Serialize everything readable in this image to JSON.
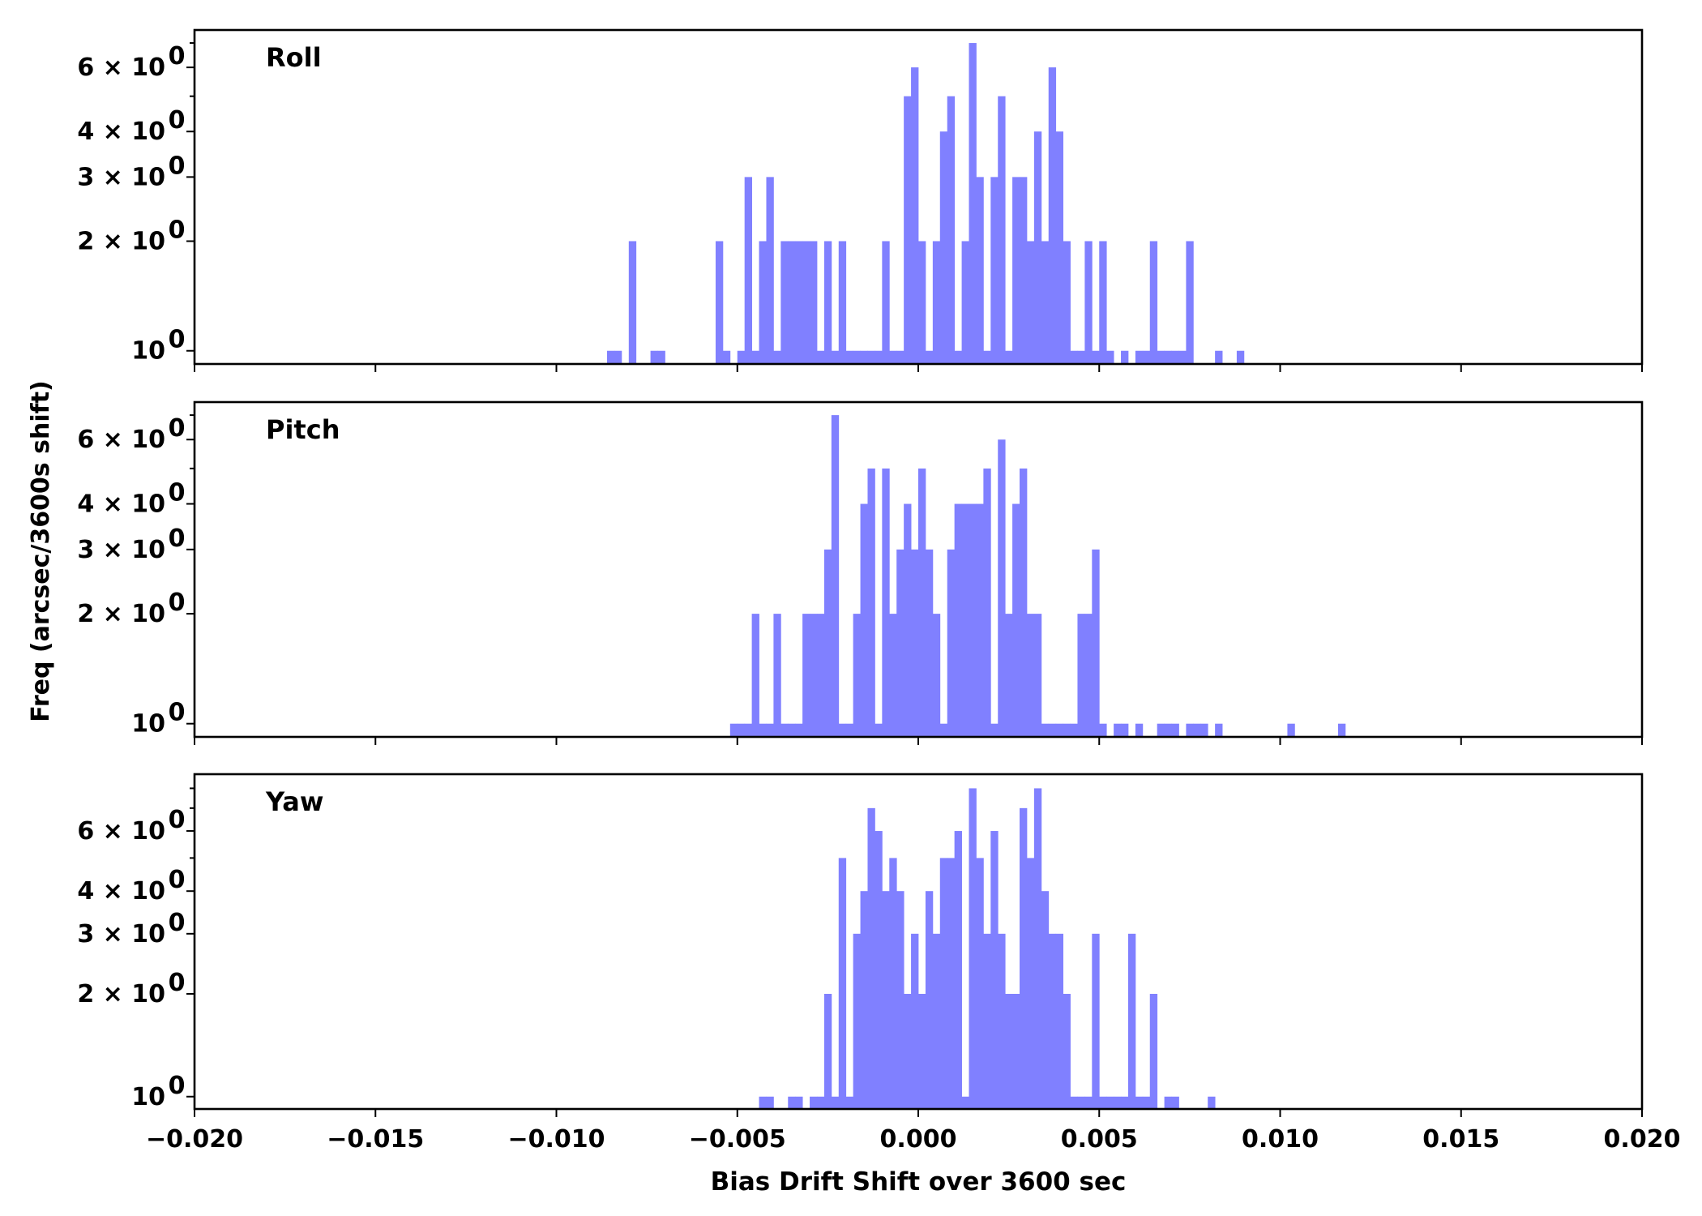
{
  "colors": {
    "bar": "#8080ff",
    "axes": "#000000"
  },
  "chart_data": {
    "type": "histogram",
    "xlabel": "Bias Drift Shift over 3600 sec",
    "ylabel": "Freq (arcsec/3600s shift)",
    "xlim": [
      -0.02,
      0.02
    ],
    "xticks": [
      -0.02,
      -0.015,
      -0.01,
      -0.005,
      0.0,
      0.005,
      0.01,
      0.015,
      0.02
    ],
    "xtick_labels": [
      "−0.020",
      "−0.015",
      "−0.010",
      "−0.005",
      "0.000",
      "0.005",
      "0.010",
      "0.015",
      "0.020"
    ],
    "yscale": "log",
    "bin_width": 0.0002,
    "ytick_labels": {
      "1": [
        "10",
        "0"
      ],
      "2": [
        "2 × 10",
        "0"
      ],
      "3": [
        "3 × 10",
        "0"
      ],
      "4": [
        "4 × 10",
        "0"
      ],
      "6": [
        "6 × 10",
        "0"
      ]
    },
    "panels": [
      {
        "title": "Roll",
        "ylim": [
          0.92,
          7.6
        ],
        "yticks": [
          1,
          2,
          3,
          4,
          6
        ],
        "bins": [
          [
            -0.0086,
            1
          ],
          [
            -0.0084,
            1
          ],
          [
            -0.008,
            2
          ],
          [
            -0.0074,
            1
          ],
          [
            -0.0072,
            1
          ],
          [
            -0.0056,
            2
          ],
          [
            -0.0054,
            1
          ],
          [
            -0.005,
            1
          ],
          [
            -0.0048,
            3
          ],
          [
            -0.0046,
            1
          ],
          [
            -0.0044,
            2
          ],
          [
            -0.0042,
            3
          ],
          [
            -0.004,
            1
          ],
          [
            -0.0038,
            2
          ],
          [
            -0.0036,
            2
          ],
          [
            -0.0034,
            2
          ],
          [
            -0.0032,
            2
          ],
          [
            -0.003,
            2
          ],
          [
            -0.0028,
            1
          ],
          [
            -0.0026,
            2
          ],
          [
            -0.0024,
            1
          ],
          [
            -0.0022,
            2
          ],
          [
            -0.002,
            1
          ],
          [
            -0.0018,
            1
          ],
          [
            -0.0016,
            1
          ],
          [
            -0.0014,
            1
          ],
          [
            -0.0012,
            1
          ],
          [
            -0.001,
            2
          ],
          [
            -0.0008,
            1
          ],
          [
            -0.0006,
            1
          ],
          [
            -0.0004,
            5
          ],
          [
            -0.0002,
            6
          ],
          [
            0.0,
            2
          ],
          [
            0.0002,
            1
          ],
          [
            0.0004,
            2
          ],
          [
            0.0006,
            4
          ],
          [
            0.0008,
            5
          ],
          [
            0.001,
            1
          ],
          [
            0.0012,
            2
          ],
          [
            0.0014,
            7
          ],
          [
            0.0016,
            3
          ],
          [
            0.0018,
            1
          ],
          [
            0.002,
            3
          ],
          [
            0.0022,
            5
          ],
          [
            0.0024,
            1
          ],
          [
            0.0026,
            3
          ],
          [
            0.0028,
            3
          ],
          [
            0.003,
            2
          ],
          [
            0.0032,
            4
          ],
          [
            0.0034,
            2
          ],
          [
            0.0036,
            6
          ],
          [
            0.0038,
            4
          ],
          [
            0.004,
            2
          ],
          [
            0.0042,
            1
          ],
          [
            0.0044,
            1
          ],
          [
            0.0046,
            2
          ],
          [
            0.0048,
            1
          ],
          [
            0.005,
            2
          ],
          [
            0.0052,
            1
          ],
          [
            0.0056,
            1
          ],
          [
            0.006,
            1
          ],
          [
            0.0062,
            1
          ],
          [
            0.0064,
            2
          ],
          [
            0.0066,
            1
          ],
          [
            0.0068,
            1
          ],
          [
            0.007,
            1
          ],
          [
            0.0072,
            1
          ],
          [
            0.0074,
            2
          ],
          [
            0.0082,
            1
          ],
          [
            0.0088,
            1
          ]
        ]
      },
      {
        "title": "Pitch",
        "ylim": [
          0.92,
          7.6
        ],
        "yticks": [
          1,
          2,
          3,
          4,
          6
        ],
        "bins": [
          [
            -0.0052,
            1
          ],
          [
            -0.005,
            1
          ],
          [
            -0.0048,
            1
          ],
          [
            -0.0046,
            2
          ],
          [
            -0.0044,
            1
          ],
          [
            -0.0042,
            1
          ],
          [
            -0.004,
            2
          ],
          [
            -0.0038,
            1
          ],
          [
            -0.0036,
            1
          ],
          [
            -0.0034,
            1
          ],
          [
            -0.0032,
            2
          ],
          [
            -0.003,
            2
          ],
          [
            -0.0028,
            2
          ],
          [
            -0.0026,
            3
          ],
          [
            -0.0024,
            7
          ],
          [
            -0.0022,
            1
          ],
          [
            -0.002,
            1
          ],
          [
            -0.0018,
            2
          ],
          [
            -0.0016,
            4
          ],
          [
            -0.0014,
            5
          ],
          [
            -0.0012,
            1
          ],
          [
            -0.001,
            5
          ],
          [
            -0.0008,
            2
          ],
          [
            -0.0006,
            3
          ],
          [
            -0.0004,
            4
          ],
          [
            -0.0002,
            3
          ],
          [
            0.0,
            5
          ],
          [
            0.0002,
            3
          ],
          [
            0.0004,
            2
          ],
          [
            0.0006,
            1
          ],
          [
            0.0008,
            3
          ],
          [
            0.001,
            4
          ],
          [
            0.0012,
            4
          ],
          [
            0.0014,
            4
          ],
          [
            0.0016,
            4
          ],
          [
            0.0018,
            5
          ],
          [
            0.002,
            1
          ],
          [
            0.0022,
            6
          ],
          [
            0.0024,
            2
          ],
          [
            0.0026,
            4
          ],
          [
            0.0028,
            5
          ],
          [
            0.003,
            2
          ],
          [
            0.0032,
            2
          ],
          [
            0.0034,
            1
          ],
          [
            0.0036,
            1
          ],
          [
            0.0038,
            1
          ],
          [
            0.004,
            1
          ],
          [
            0.0042,
            1
          ],
          [
            0.0044,
            2
          ],
          [
            0.0046,
            2
          ],
          [
            0.0048,
            3
          ],
          [
            0.005,
            1
          ],
          [
            0.0054,
            1
          ],
          [
            0.0056,
            1
          ],
          [
            0.006,
            1
          ],
          [
            0.0066,
            1
          ],
          [
            0.0068,
            1
          ],
          [
            0.007,
            1
          ],
          [
            0.0074,
            1
          ],
          [
            0.0076,
            1
          ],
          [
            0.0078,
            1
          ],
          [
            0.0082,
            1
          ],
          [
            0.0102,
            1
          ],
          [
            0.0116,
            1
          ]
        ]
      },
      {
        "title": "Yaw",
        "ylim": [
          0.92,
          8.8
        ],
        "yticks": [
          1,
          2,
          3,
          4,
          6
        ],
        "bins": [
          [
            -0.0044,
            1
          ],
          [
            -0.0042,
            1
          ],
          [
            -0.0036,
            1
          ],
          [
            -0.0034,
            1
          ],
          [
            -0.003,
            1
          ],
          [
            -0.0028,
            1
          ],
          [
            -0.0026,
            2
          ],
          [
            -0.0024,
            1
          ],
          [
            -0.0022,
            5
          ],
          [
            -0.002,
            1
          ],
          [
            -0.0018,
            3
          ],
          [
            -0.0016,
            4
          ],
          [
            -0.0014,
            7
          ],
          [
            -0.0012,
            6
          ],
          [
            -0.001,
            4
          ],
          [
            -0.0008,
            5
          ],
          [
            -0.0006,
            4
          ],
          [
            -0.0004,
            2
          ],
          [
            -0.0002,
            3
          ],
          [
            0.0,
            2
          ],
          [
            0.0002,
            4
          ],
          [
            0.0004,
            3
          ],
          [
            0.0006,
            5
          ],
          [
            0.0008,
            5
          ],
          [
            0.001,
            6
          ],
          [
            0.0012,
            1
          ],
          [
            0.0014,
            8
          ],
          [
            0.0016,
            5
          ],
          [
            0.0018,
            3
          ],
          [
            0.002,
            6
          ],
          [
            0.0022,
            3
          ],
          [
            0.0024,
            2
          ],
          [
            0.0026,
            2
          ],
          [
            0.0028,
            7
          ],
          [
            0.003,
            5
          ],
          [
            0.0032,
            8
          ],
          [
            0.0034,
            4
          ],
          [
            0.0036,
            3
          ],
          [
            0.0038,
            3
          ],
          [
            0.004,
            2
          ],
          [
            0.0042,
            1
          ],
          [
            0.0044,
            1
          ],
          [
            0.0046,
            1
          ],
          [
            0.0048,
            3
          ],
          [
            0.005,
            1
          ],
          [
            0.0052,
            1
          ],
          [
            0.0054,
            1
          ],
          [
            0.0056,
            1
          ],
          [
            0.0058,
            3
          ],
          [
            0.006,
            1
          ],
          [
            0.0062,
            1
          ],
          [
            0.0064,
            2
          ],
          [
            0.0068,
            1
          ],
          [
            0.007,
            1
          ],
          [
            0.008,
            1
          ]
        ]
      }
    ]
  }
}
